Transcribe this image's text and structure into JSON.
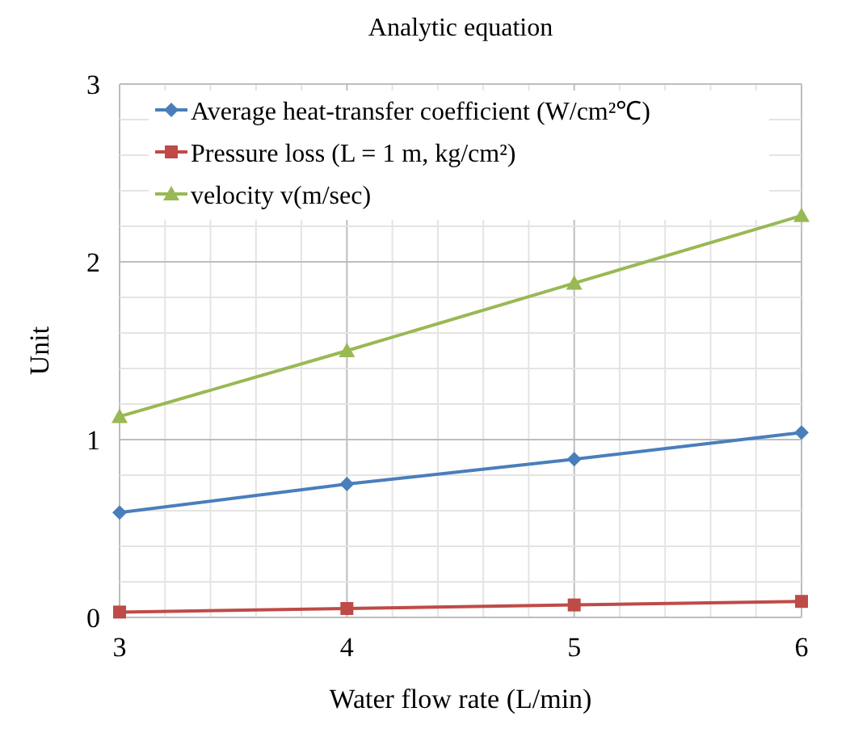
{
  "chart_data": {
    "type": "line",
    "title": "Analytic equation",
    "xlabel": "Water flow rate (L/min)",
    "ylabel": "Unit",
    "x": [
      3,
      4,
      5,
      6
    ],
    "xlim": [
      3,
      6
    ],
    "ylim": [
      0,
      3
    ],
    "xticks": [
      3,
      {
        "value": 3.2,
        "label": null
      },
      {
        "value": 3.4,
        "label": null
      },
      {
        "value": 3.6,
        "label": null
      },
      {
        "value": 3.8,
        "label": null
      },
      4,
      {
        "value": 4.2,
        "label": null
      },
      {
        "value": 4.4,
        "label": null
      },
      {
        "value": 4.6,
        "label": null
      },
      {
        "value": 4.8,
        "label": null
      },
      5,
      {
        "value": 5.2,
        "label": null
      },
      {
        "value": 5.4,
        "label": null
      },
      {
        "value": 5.6,
        "label": null
      },
      {
        "value": 5.8,
        "label": null
      },
      6
    ],
    "yticks": [
      0,
      {
        "value": 0.2,
        "label": null
      },
      {
        "value": 0.4,
        "label": null
      },
      {
        "value": 0.6,
        "label": null
      },
      {
        "value": 0.8,
        "label": null
      },
      1,
      {
        "value": 1.2,
        "label": null
      },
      {
        "value": 1.4,
        "label": null
      },
      {
        "value": 1.6,
        "label": null
      },
      {
        "value": 1.8,
        "label": null
      },
      2,
      {
        "value": 2.2,
        "label": null
      },
      {
        "value": 2.4,
        "label": null
      },
      {
        "value": 2.6,
        "label": null
      },
      {
        "value": 2.8,
        "label": null
      },
      3
    ],
    "grid": true,
    "legend": "top left",
    "series": [
      {
        "name": "Average heat-transfer coefficient (W/cm²℃)",
        "color": "#4a7ebb",
        "marker": "diamond",
        "values": [
          0.59,
          0.75,
          0.89,
          1.04
        ]
      },
      {
        "name": "Pressure loss (L = 1 m, kg/cm²)",
        "color": "#be4b48",
        "marker": "square",
        "values": [
          0.03,
          0.05,
          0.07,
          0.09
        ]
      },
      {
        "name": "velocity  v(m/sec)",
        "color": "#98b954",
        "marker": "triangle",
        "values": [
          1.13,
          1.5,
          1.88,
          2.26
        ]
      }
    ]
  }
}
